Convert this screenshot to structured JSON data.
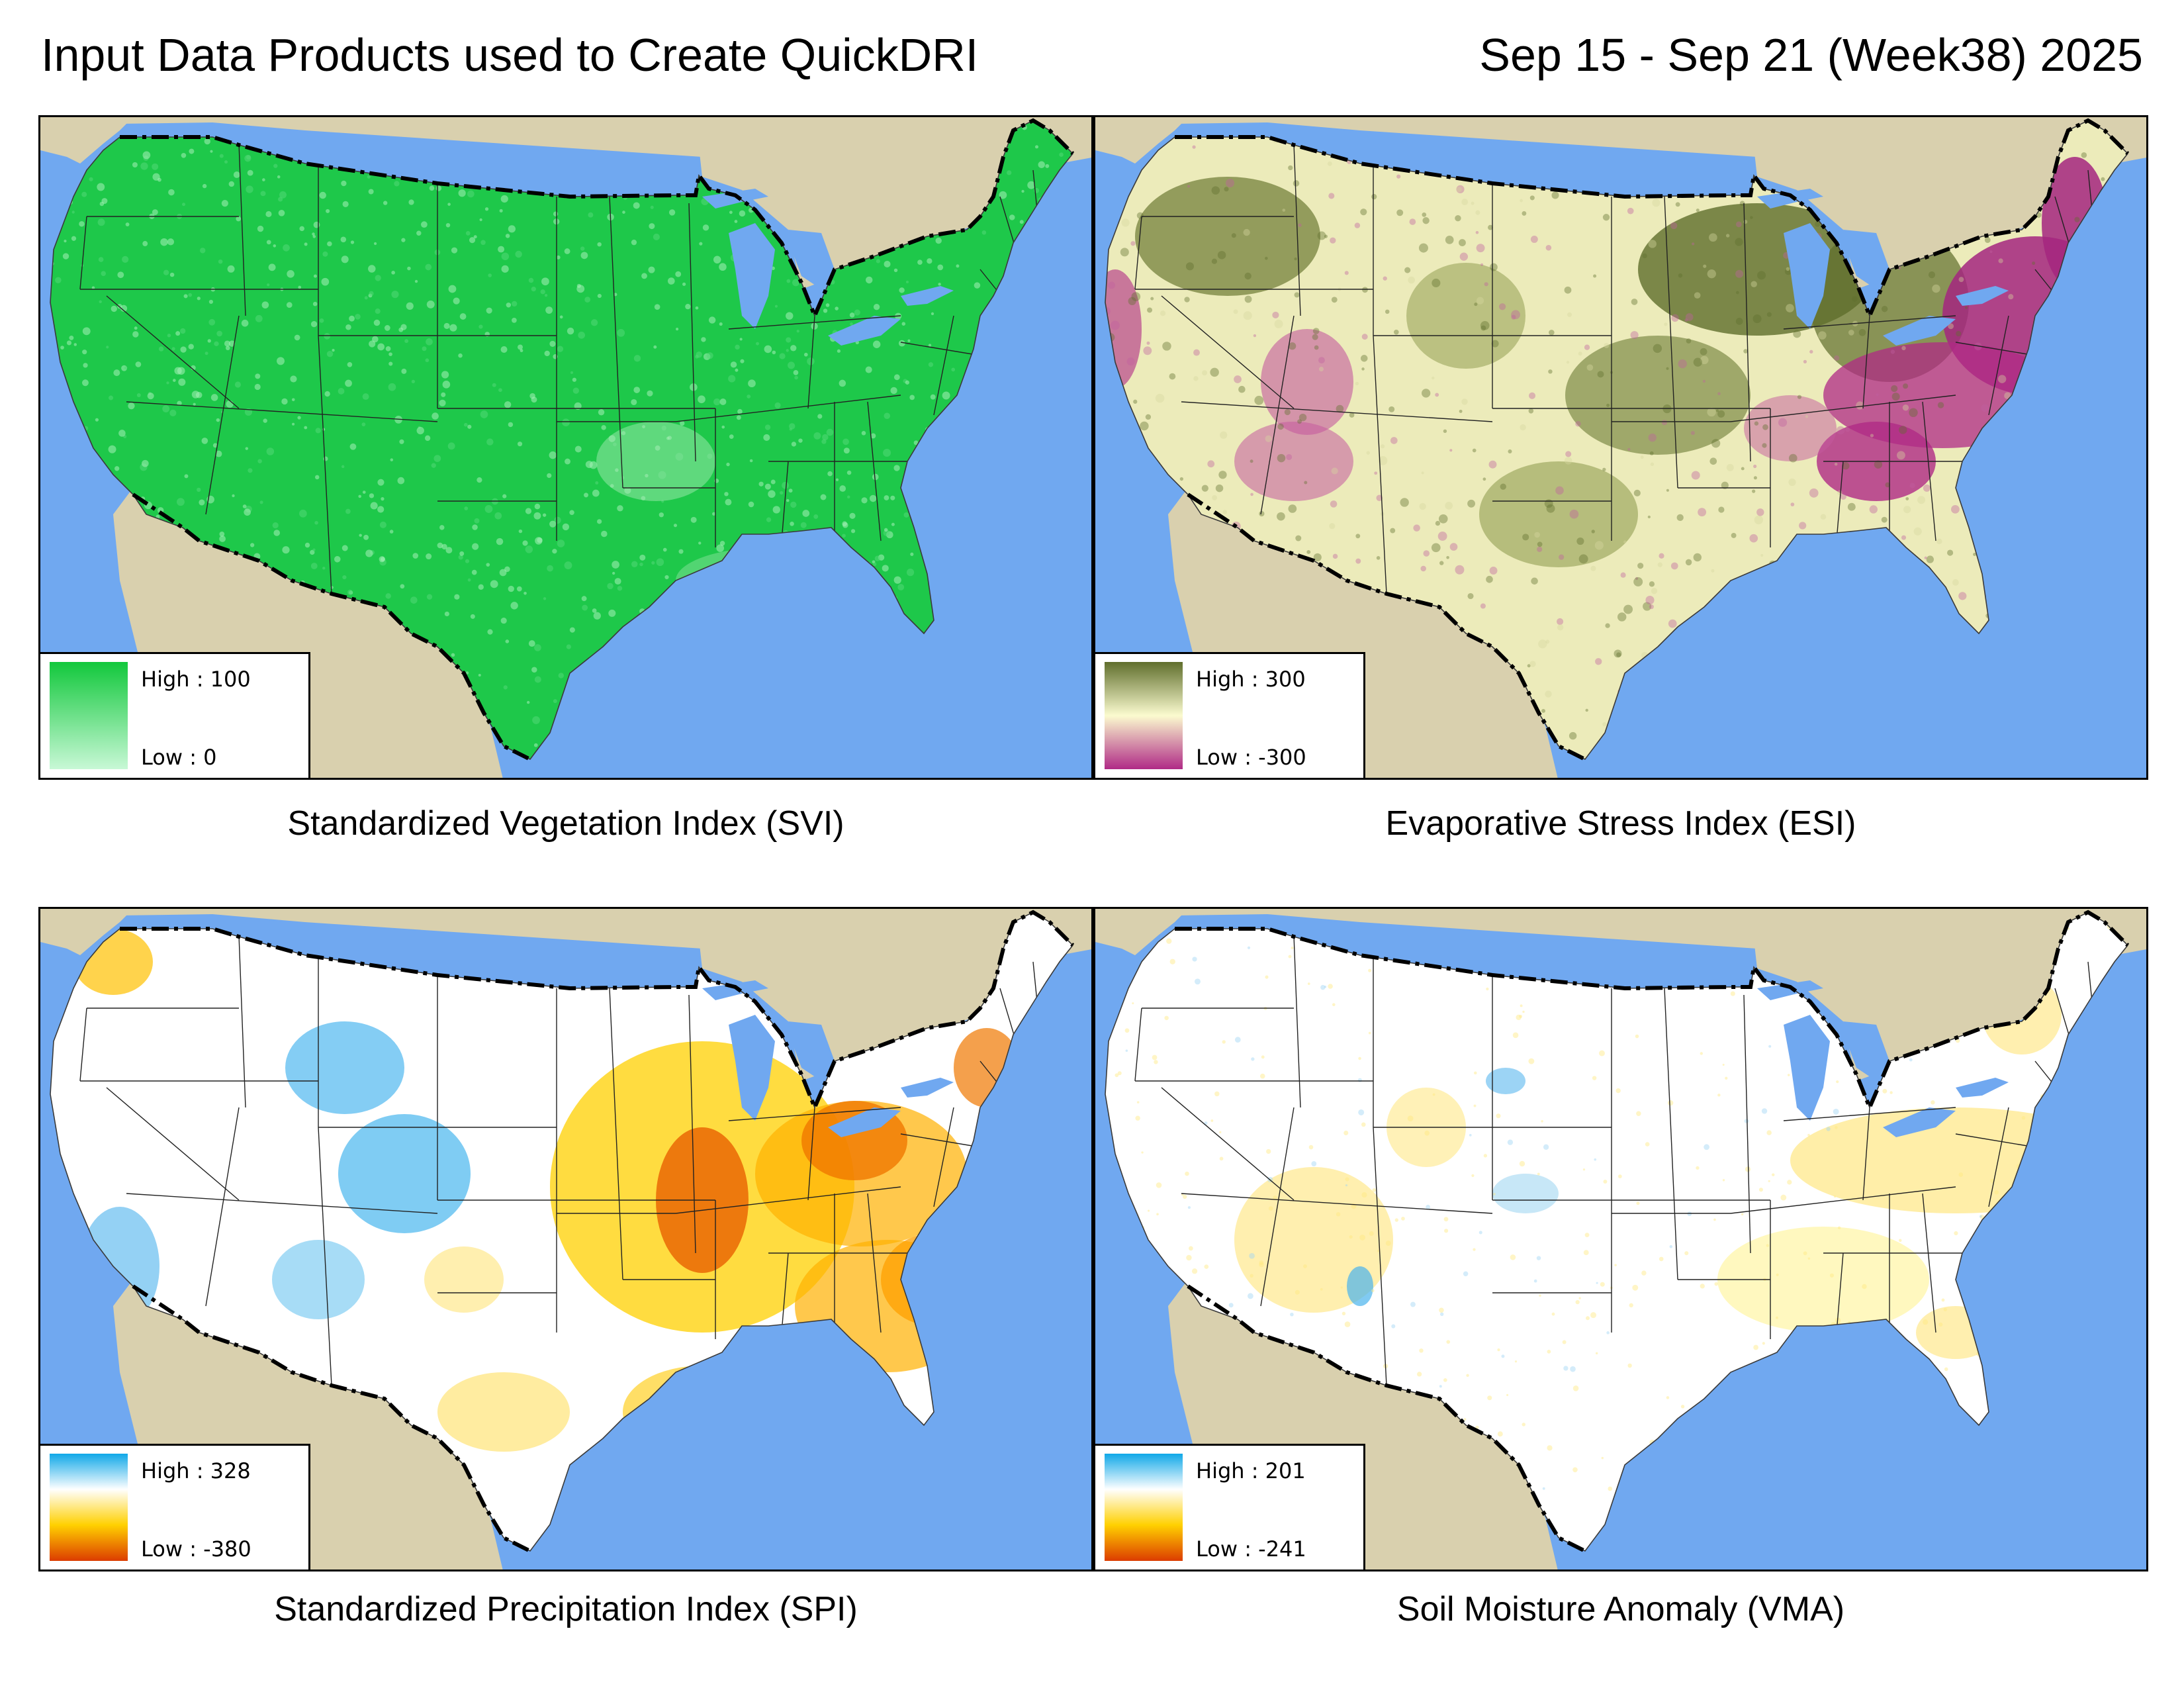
{
  "header": {
    "left_title": "Input Data Products used to Create QuickDRI",
    "right_title": "Sep 15 - Sep 21 (Week38) 2025"
  },
  "colors": {
    "ocean": "#70a8f0",
    "land_outside": "#d9d0ae",
    "border_line": "#000000"
  },
  "panels": [
    {
      "id": "svi",
      "caption": "Standardized Vegetation Index (SVI)",
      "legend": {
        "high": "High : 100",
        "low": "Low : 0"
      },
      "ramp": [
        "#12c83c",
        "#c8f8d6"
      ],
      "fill": "#1ec84a",
      "icon": "svi-map"
    },
    {
      "id": "esi",
      "caption": "Evaporative Stress Index (ESI)",
      "legend": {
        "high": "High : 300",
        "low": "Low : -300"
      },
      "ramp": [
        "#5f6e2c",
        "#fbfbcf",
        "#b02a86"
      ],
      "fill": "#ecebba",
      "icon": "esi-map"
    },
    {
      "id": "spi",
      "caption": "Standardized Precipitation Index (SPI)",
      "legend": {
        "high": "High : 328",
        "low": "Low : -380"
      },
      "ramp": [
        "#10a8e8",
        "#ffffff",
        "#ffd000",
        "#dc3c00"
      ],
      "fill": "#ffffff",
      "icon": "spi-map"
    },
    {
      "id": "vma",
      "caption": "Soil Moisture Anomaly (VMA)",
      "legend": {
        "high": "High : 201",
        "low": "Low : -241"
      },
      "ramp": [
        "#10a8e8",
        "#ffffff",
        "#ffd000",
        "#dc3c00"
      ],
      "fill": "#ffffff",
      "icon": "vma-map"
    }
  ]
}
